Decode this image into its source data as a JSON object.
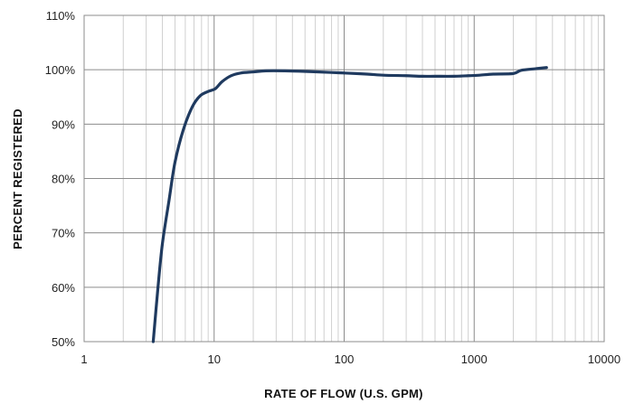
{
  "chart_data": {
    "type": "line",
    "title": "",
    "xlabel": "RATE OF FLOW (U.S. GPM)",
    "ylabel": "PERCENT REGISTERED",
    "x_scale": "log",
    "xlim": [
      1,
      10000
    ],
    "ylim": [
      50,
      110
    ],
    "x_ticks": [
      1,
      10,
      100,
      1000,
      10000
    ],
    "x_tick_labels": [
      "1",
      "10",
      "100",
      "1000",
      "10000"
    ],
    "y_ticks": [
      50,
      60,
      70,
      80,
      90,
      100,
      110
    ],
    "y_tick_labels": [
      "50%",
      "60%",
      "70%",
      "80%",
      "90%",
      "100%",
      "110%"
    ],
    "grid": true,
    "legend": "none",
    "series": [
      {
        "color": "#1f3a5f",
        "x": [
          3.4,
          3.7,
          4.0,
          4.5,
          5.0,
          5.8,
          6.8,
          7.8,
          9.0,
          10.2,
          11.5,
          13.5,
          16,
          20,
          25,
          35,
          50,
          80,
          100,
          150,
          200,
          300,
          400,
          500,
          700,
          900,
          1100,
          1400,
          2000,
          2300,
          3000,
          3600
        ],
        "y": [
          50,
          60,
          68,
          76,
          83,
          89,
          93.2,
          95.2,
          96.0,
          96.5,
          97.8,
          98.9,
          99.4,
          99.6,
          99.8,
          99.8,
          99.7,
          99.5,
          99.4,
          99.2,
          99.0,
          98.9,
          98.8,
          98.8,
          98.8,
          98.9,
          99.0,
          99.2,
          99.3,
          99.9,
          100.2,
          100.4
        ]
      }
    ]
  }
}
